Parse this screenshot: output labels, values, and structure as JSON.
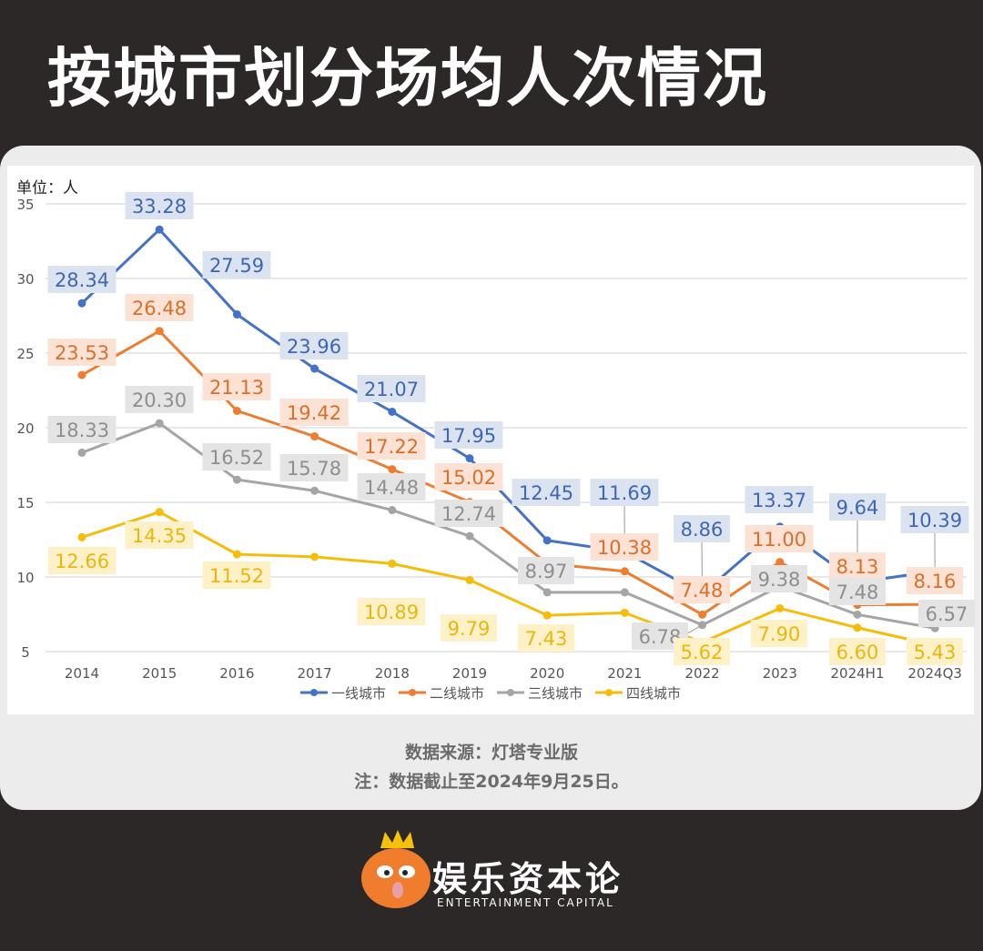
{
  "title": "按城市划分场均人次情况",
  "footer": {
    "source": "数据来源：灯塔专业版",
    "note": "注：数据截止至2024年9月25日。"
  },
  "brand": {
    "name_cn": "娱乐资本论",
    "name_en": "ENTERTAINMENT CAPITAL"
  },
  "chart_data": {
    "type": "line",
    "ylabel": "单位：人",
    "ylim": [
      5,
      35
    ],
    "yticks": [
      "5",
      "10",
      "15",
      "20",
      "25",
      "30",
      "35"
    ],
    "grid": true,
    "legend_position": "bottom",
    "categories": [
      "2014",
      "2015",
      "2016",
      "2017",
      "2018",
      "2019",
      "2020",
      "2021",
      "2022",
      "2023",
      "2024H1",
      "2024Q3"
    ],
    "series": [
      {
        "name": "一线城市",
        "color": "#4472c4",
        "label_bg": "#dbe3f1",
        "label_color": "#3f66b0",
        "values": [
          28.34,
          33.28,
          27.59,
          23.96,
          21.07,
          17.95,
          12.45,
          11.69,
          8.86,
          13.37,
          9.64,
          10.39
        ],
        "labels": [
          "28.34",
          "33.28",
          "27.59",
          "23.96",
          "21.07",
          "17.95",
          "12.45",
          "11.69",
          "8.86",
          "13.37",
          "9.64",
          "10.39"
        ]
      },
      {
        "name": "二线城市",
        "color": "#ed7d31",
        "label_bg": "#fbe2d5",
        "label_color": "#d8702c",
        "values": [
          23.53,
          26.48,
          21.13,
          19.42,
          17.22,
          15.02,
          10.9,
          10.38,
          7.48,
          11.0,
          8.13,
          8.16
        ],
        "labels": [
          "23.53",
          "26.48",
          "21.13",
          "19.42",
          "17.22",
          "15.02",
          null,
          "10.38",
          "7.48",
          "11.00",
          "8.13",
          "8.16"
        ]
      },
      {
        "name": "三线城市",
        "color": "#a5a5a5",
        "label_bg": "#e4e4e4",
        "label_color": "#8e8e8e",
        "values": [
          18.33,
          20.3,
          16.52,
          15.78,
          14.48,
          12.74,
          8.97,
          8.97,
          6.78,
          9.38,
          7.48,
          6.57
        ],
        "labels": [
          "18.33",
          "20.30",
          "16.52",
          "15.78",
          "14.48",
          "12.74",
          "8.97",
          null,
          "6.78",
          "9.38",
          "7.48",
          "6.57"
        ]
      },
      {
        "name": "四线城市",
        "color": "#f5bd0a",
        "label_bg": "#fff1c7",
        "label_color": "#e8b70e",
        "values": [
          12.66,
          14.35,
          11.52,
          11.35,
          10.89,
          9.79,
          7.43,
          7.6,
          5.62,
          7.9,
          6.6,
          5.43
        ],
        "labels": [
          "12.66",
          "14.35",
          "11.52",
          null,
          "10.89",
          "9.79",
          "7.43",
          null,
          "5.62",
          "7.90",
          "6.60",
          "5.43"
        ]
      }
    ]
  }
}
